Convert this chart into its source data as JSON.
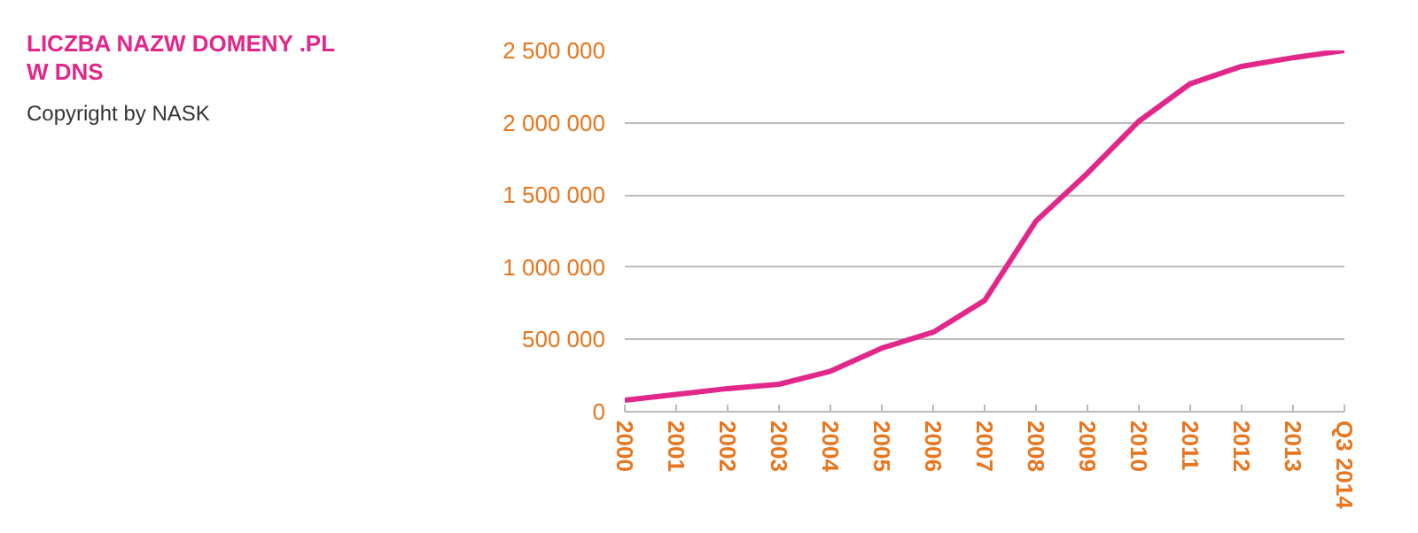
{
  "chart_data": {
    "type": "line",
    "title": "LICZBA NAZW DOMENY .PL W DNS",
    "annotations": [
      "Copyright by NASK"
    ],
    "categories": [
      "2000",
      "2001",
      "2002",
      "2003",
      "2004",
      "2005",
      "2006",
      "2007",
      "2008",
      "2009",
      "2010",
      "2011",
      "2012",
      "2013",
      "Q3 2014"
    ],
    "series": [
      {
        "color": "#e2278a",
        "values": [
          80000,
          120000,
          160000,
          190000,
          280000,
          440000,
          550000,
          770000,
          1320000,
          1650000,
          2010000,
          2270000,
          2390000,
          2450000,
          2500000
        ]
      }
    ],
    "ylim": [
      0,
      2500000
    ],
    "yticks": [
      {
        "value": 0,
        "label": "0"
      },
      {
        "value": 500000,
        "label": "500 000"
      },
      {
        "value": 1000000,
        "label": "1 000 000"
      },
      {
        "value": 1500000,
        "label": "1 500 000"
      },
      {
        "value": 2000000,
        "label": "2 000 000"
      },
      {
        "value": 2500000,
        "label": "2 500 000"
      }
    ],
    "grid": "y",
    "marker": "none",
    "line_style": "solid"
  }
}
